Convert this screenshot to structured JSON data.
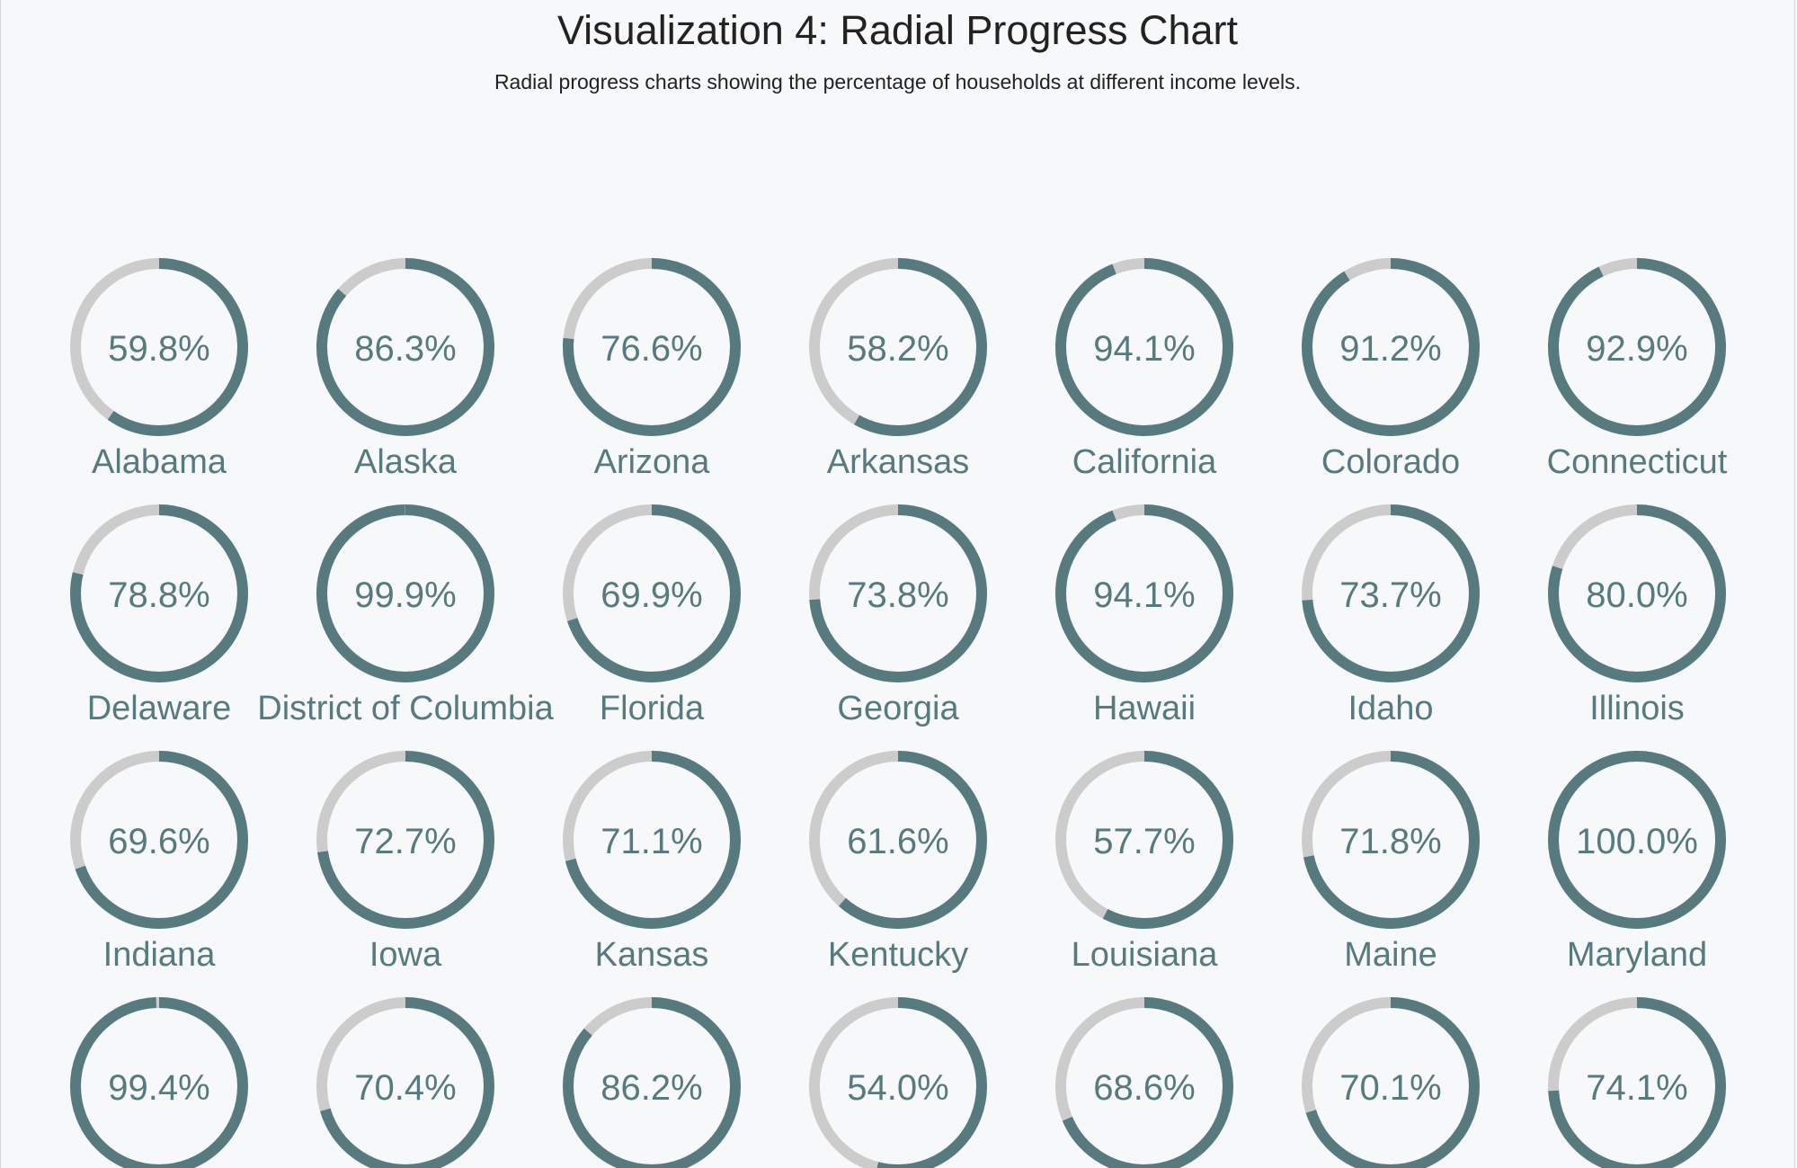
{
  "title": "Visualization 4: Radial Progress Chart",
  "subtitle": "Radial progress charts showing the percentage of households at different income levels.",
  "colors": {
    "progress": "#577a7e",
    "track": "#cccccc",
    "text": "#577a7e",
    "background": "#f7f8f9"
  },
  "chart_data": {
    "type": "radial-progress",
    "unit": "%",
    "items": [
      {
        "label": "Alabama",
        "value": 59.8,
        "display": "59.8%"
      },
      {
        "label": "Alaska",
        "value": 86.3,
        "display": "86.3%"
      },
      {
        "label": "Arizona",
        "value": 76.6,
        "display": "76.6%"
      },
      {
        "label": "Arkansas",
        "value": 58.2,
        "display": "58.2%"
      },
      {
        "label": "California",
        "value": 94.1,
        "display": "94.1%"
      },
      {
        "label": "Colorado",
        "value": 91.2,
        "display": "91.2%"
      },
      {
        "label": "Connecticut",
        "value": 92.9,
        "display": "92.9%"
      },
      {
        "label": "Delaware",
        "value": 78.8,
        "display": "78.8%"
      },
      {
        "label": "District of Columbia",
        "value": 99.9,
        "display": "99.9%"
      },
      {
        "label": "Florida",
        "value": 69.9,
        "display": "69.9%"
      },
      {
        "label": "Georgia",
        "value": 73.8,
        "display": "73.8%"
      },
      {
        "label": "Hawaii",
        "value": 94.1,
        "display": "94.1%"
      },
      {
        "label": "Idaho",
        "value": 73.7,
        "display": "73.7%"
      },
      {
        "label": "Illinois",
        "value": 80.0,
        "display": "80.0%"
      },
      {
        "label": "Indiana",
        "value": 69.6,
        "display": "69.6%"
      },
      {
        "label": "Iowa",
        "value": 72.7,
        "display": "72.7%"
      },
      {
        "label": "Kansas",
        "value": 71.1,
        "display": "71.1%"
      },
      {
        "label": "Kentucky",
        "value": 61.6,
        "display": "61.6%"
      },
      {
        "label": "Louisiana",
        "value": 57.7,
        "display": "57.7%"
      },
      {
        "label": "Maine",
        "value": 71.8,
        "display": "71.8%"
      },
      {
        "label": "Maryland",
        "value": 100.0,
        "display": "100.0%"
      },
      {
        "label": "",
        "value": 99.4,
        "display": "99.4%"
      },
      {
        "label": "",
        "value": 70.4,
        "display": "70.4%"
      },
      {
        "label": "",
        "value": 86.2,
        "display": "86.2%"
      },
      {
        "label": "",
        "value": 54.0,
        "display": "54.0%"
      },
      {
        "label": "",
        "value": 68.6,
        "display": "68.6%"
      },
      {
        "label": "",
        "value": 70.1,
        "display": "70.1%"
      },
      {
        "label": "",
        "value": 74.1,
        "display": "74.1%"
      }
    ]
  }
}
